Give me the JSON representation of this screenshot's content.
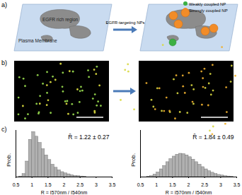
{
  "panel_labels": [
    "a)",
    "b)",
    "c)"
  ],
  "diagram": {
    "region_label": "EGFR rich region",
    "membrane_label": "Plasma Membrane",
    "arrow_label": "EGFR-targeting NPs",
    "legend": [
      {
        "name": "Weakly coupled NP",
        "color": "#3cb043"
      },
      {
        "name": "Strongly coupled NP",
        "color": "#f28c28"
      }
    ]
  },
  "chart_data": [
    {
      "type": "histogram",
      "color": "#b0b0b0",
      "bins": [
        0.5,
        0.6,
        0.7,
        0.8,
        0.9,
        1.0,
        1.1,
        1.2,
        1.3,
        1.4,
        1.5,
        1.6,
        1.7,
        1.8,
        1.9,
        2.0,
        2.1,
        2.2,
        2.3,
        2.4,
        2.5,
        2.6,
        2.7,
        2.8,
        2.9,
        3.0,
        3.1,
        3.2,
        3.3,
        3.4,
        3.5
      ],
      "values": [
        0,
        0.002,
        0.01,
        0.05,
        0.12,
        0.145,
        0.13,
        0.11,
        0.09,
        0.07,
        0.055,
        0.04,
        0.03,
        0.022,
        0.016,
        0.012,
        0.009,
        0.006,
        0.004,
        0.003,
        0.002,
        0.001,
        0,
        0,
        0,
        0,
        0,
        0,
        0,
        0
      ],
      "xlim": [
        0.5,
        3.5
      ],
      "xticks": [
        0.5,
        1,
        1.5,
        2,
        2.5,
        3,
        3.5
      ],
      "ylim": [
        0,
        0.15
      ],
      "x_label": "R = I570nm / I540nm",
      "y_label": "Prob.",
      "annotation": "R̄ = 1.22 ± 0.27",
      "tick_labels": "x"
    },
    {
      "type": "histogram",
      "color": "#b0b0b0",
      "bins": [
        0.5,
        0.6,
        0.7,
        0.8,
        0.9,
        1.0,
        1.1,
        1.2,
        1.3,
        1.4,
        1.5,
        1.6,
        1.7,
        1.8,
        1.9,
        2.0,
        2.1,
        2.2,
        2.3,
        2.4,
        2.5,
        2.6,
        2.7,
        2.8,
        2.9,
        3.0,
        3.1,
        3.2,
        3.3,
        3.4,
        3.5
      ],
      "values": [
        0,
        0,
        0.001,
        0.003,
        0.008,
        0.015,
        0.025,
        0.036,
        0.048,
        0.058,
        0.066,
        0.072,
        0.075,
        0.074,
        0.07,
        0.064,
        0.056,
        0.048,
        0.04,
        0.032,
        0.025,
        0.019,
        0.014,
        0.01,
        0.007,
        0.005,
        0.003,
        0.002,
        0.001,
        0
      ],
      "xlim": [
        0.5,
        3.5
      ],
      "xticks": [
        0.5,
        1,
        1.5,
        2,
        2.5,
        3,
        3.5
      ],
      "ylim": [
        0,
        0.15
      ],
      "x_label": "R = I570nm / I540nm",
      "y_label": "Prob.",
      "annotation": "R̄ = 1.84 ± 0.49",
      "tick_labels": "x"
    }
  ]
}
